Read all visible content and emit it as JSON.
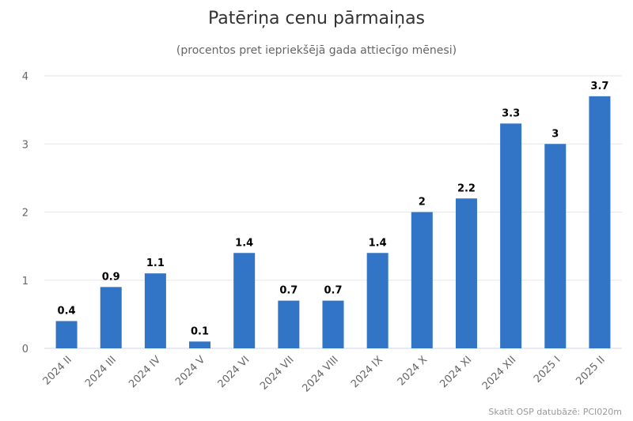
{
  "chart_data": {
    "type": "bar",
    "title": "Patēriņa cenu pārmaiņas",
    "subtitle": "(procentos pret iepriekšējā gada attiecīgo mēnesi)",
    "categories": [
      "2024 II",
      "2024 III",
      "2024 IV",
      "2024 V",
      "2024 VI",
      "2024 VII",
      "2024 VIII",
      "2024 IX",
      "2024 X",
      "2024 XI",
      "2024 XII",
      "2025 I",
      "2025 II"
    ],
    "values": [
      0.4,
      0.9,
      1.1,
      0.1,
      1.4,
      0.7,
      0.7,
      1.4,
      2,
      2.2,
      3.3,
      3,
      3.7
    ],
    "data_labels": [
      "0.4",
      "0.9",
      "1.1",
      "0.1",
      "1.4",
      "0.7",
      "0.7",
      "1.4",
      "2",
      "2.2",
      "3.3",
      "3",
      "3.7"
    ],
    "y_ticks": [
      "0",
      "1",
      "2",
      "3",
      "4"
    ],
    "ylim": [
      0,
      4
    ],
    "xlabel": "",
    "ylabel": "",
    "grid": true,
    "legend": "none",
    "bar_color": "#3274c5",
    "credit": "Skatīt OSP datubāzē: PCI020m"
  }
}
